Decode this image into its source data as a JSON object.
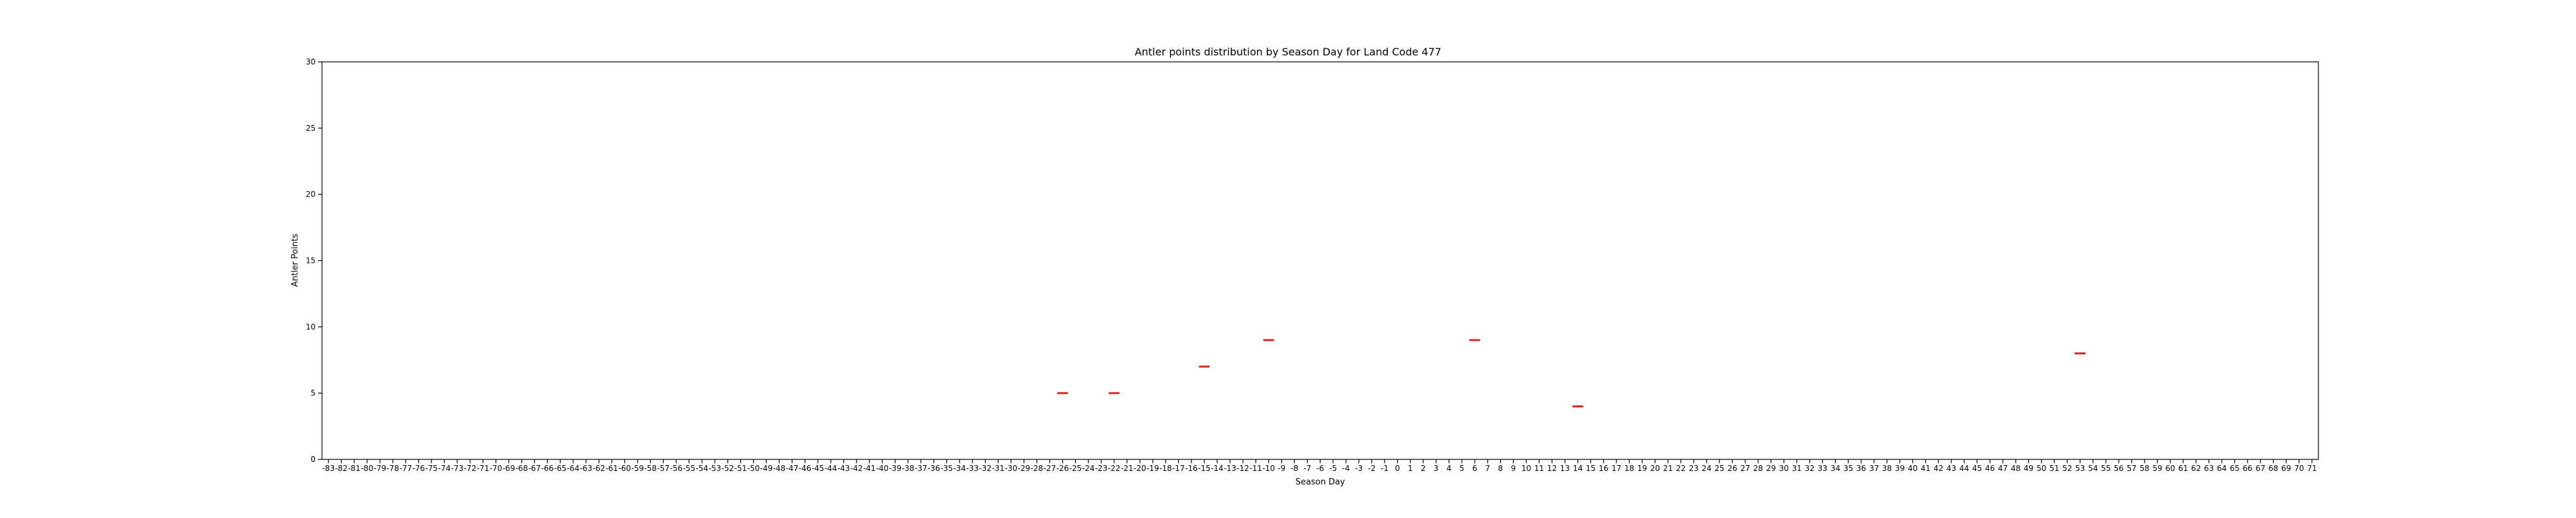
{
  "chart_data": {
    "type": "box",
    "title": "Antler points distribution by Season Day for Land Code 477",
    "xlabel": "Season Day",
    "ylabel": "Antler Points",
    "ylim": [
      0,
      30
    ],
    "yticks": [
      0,
      5,
      10,
      15,
      20,
      25,
      30
    ],
    "x_range": [
      -83,
      71
    ],
    "categories": [
      "-83",
      "-82",
      "-81",
      "-80",
      "-79",
      "-78",
      "-77",
      "-76",
      "-75",
      "-74",
      "-73",
      "-72",
      "-71",
      "-70",
      "-69",
      "-68",
      "-67",
      "-66",
      "-65",
      "-64",
      "-63",
      "-62",
      "-61",
      "-60",
      "-59",
      "-58",
      "-57",
      "-56",
      "-55",
      "-54",
      "-53",
      "-52",
      "-51",
      "-50",
      "-49",
      "-48",
      "-47",
      "-46",
      "-45",
      "-44",
      "-43",
      "-42",
      "-41",
      "-40",
      "-39",
      "-38",
      "-37",
      "-36",
      "-35",
      "-34",
      "-33",
      "-32",
      "-31",
      "-30",
      "-29",
      "-28",
      "-27",
      "-26",
      "-25",
      "-24",
      "-23",
      "-22",
      "-21",
      "-20",
      "-19",
      "-18",
      "-17",
      "-16",
      "-15",
      "-14",
      "-13",
      "-12",
      "-11",
      "-10",
      "-9",
      "-8",
      "-7",
      "-6",
      "-5",
      "-4",
      "-3",
      "-2",
      "-1",
      "0",
      "1",
      "2",
      "3",
      "4",
      "5",
      "6",
      "7",
      "8",
      "9",
      "10",
      "11",
      "12",
      "13",
      "14",
      "15",
      "16",
      "17",
      "18",
      "19",
      "20",
      "21",
      "22",
      "23",
      "24",
      "25",
      "26",
      "27",
      "28",
      "29",
      "30",
      "31",
      "32",
      "33",
      "34",
      "35",
      "36",
      "37",
      "38",
      "39",
      "40",
      "41",
      "42",
      "43",
      "44",
      "45",
      "46",
      "47",
      "48",
      "49",
      "50",
      "51",
      "52",
      "53",
      "54",
      "55",
      "56",
      "57",
      "58",
      "59",
      "60",
      "61",
      "62",
      "63",
      "64",
      "65",
      "66",
      "67",
      "68",
      "69",
      "70",
      "71"
    ],
    "points": [
      {
        "x": -26,
        "y": 5
      },
      {
        "x": -22,
        "y": 5
      },
      {
        "x": -15,
        "y": 7
      },
      {
        "x": -10,
        "y": 9
      },
      {
        "x": 6,
        "y": 9
      },
      {
        "x": 14,
        "y": 4
      },
      {
        "x": 53,
        "y": 8
      }
    ],
    "marker_color": "#d62728",
    "grid": false,
    "legend": "none"
  }
}
